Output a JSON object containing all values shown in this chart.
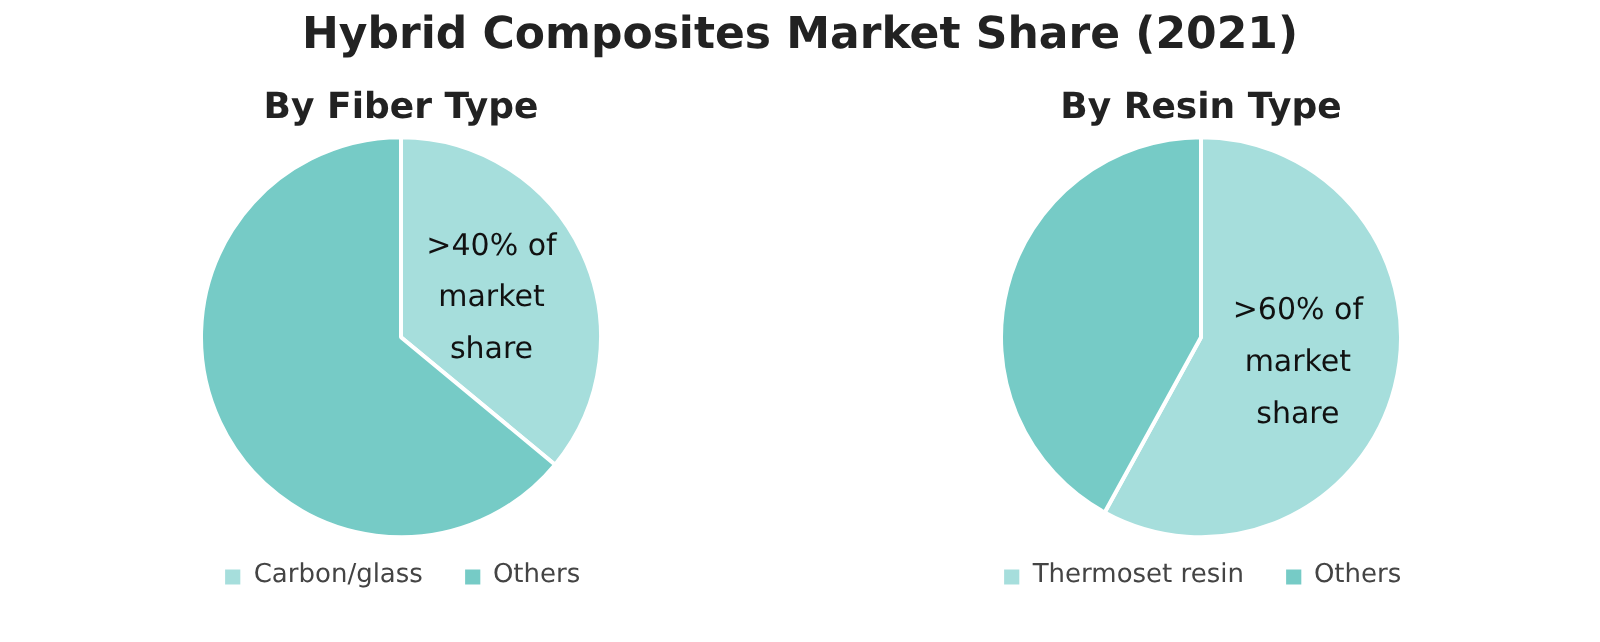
{
  "chart_data": [
    {
      "type": "pie",
      "title": "Hybrid Composites Market Share (2021)",
      "subtitle": "By Fiber Type",
      "categories": [
        "Carbon/glass",
        "Others"
      ],
      "values": [
        36,
        64
      ],
      "colors": [
        "#a6dedc",
        "#76cbc6"
      ],
      "annotations": [
        ">40% of market share"
      ],
      "legend": "bottom"
    },
    {
      "type": "pie",
      "subtitle": "By Resin Type",
      "categories": [
        "Thermoset resin",
        "Others"
      ],
      "values": [
        58,
        42
      ],
      "colors": [
        "#a6dedc",
        "#76cbc6"
      ],
      "annotations": [
        ">60% of market share"
      ],
      "legend": "bottom"
    }
  ]
}
